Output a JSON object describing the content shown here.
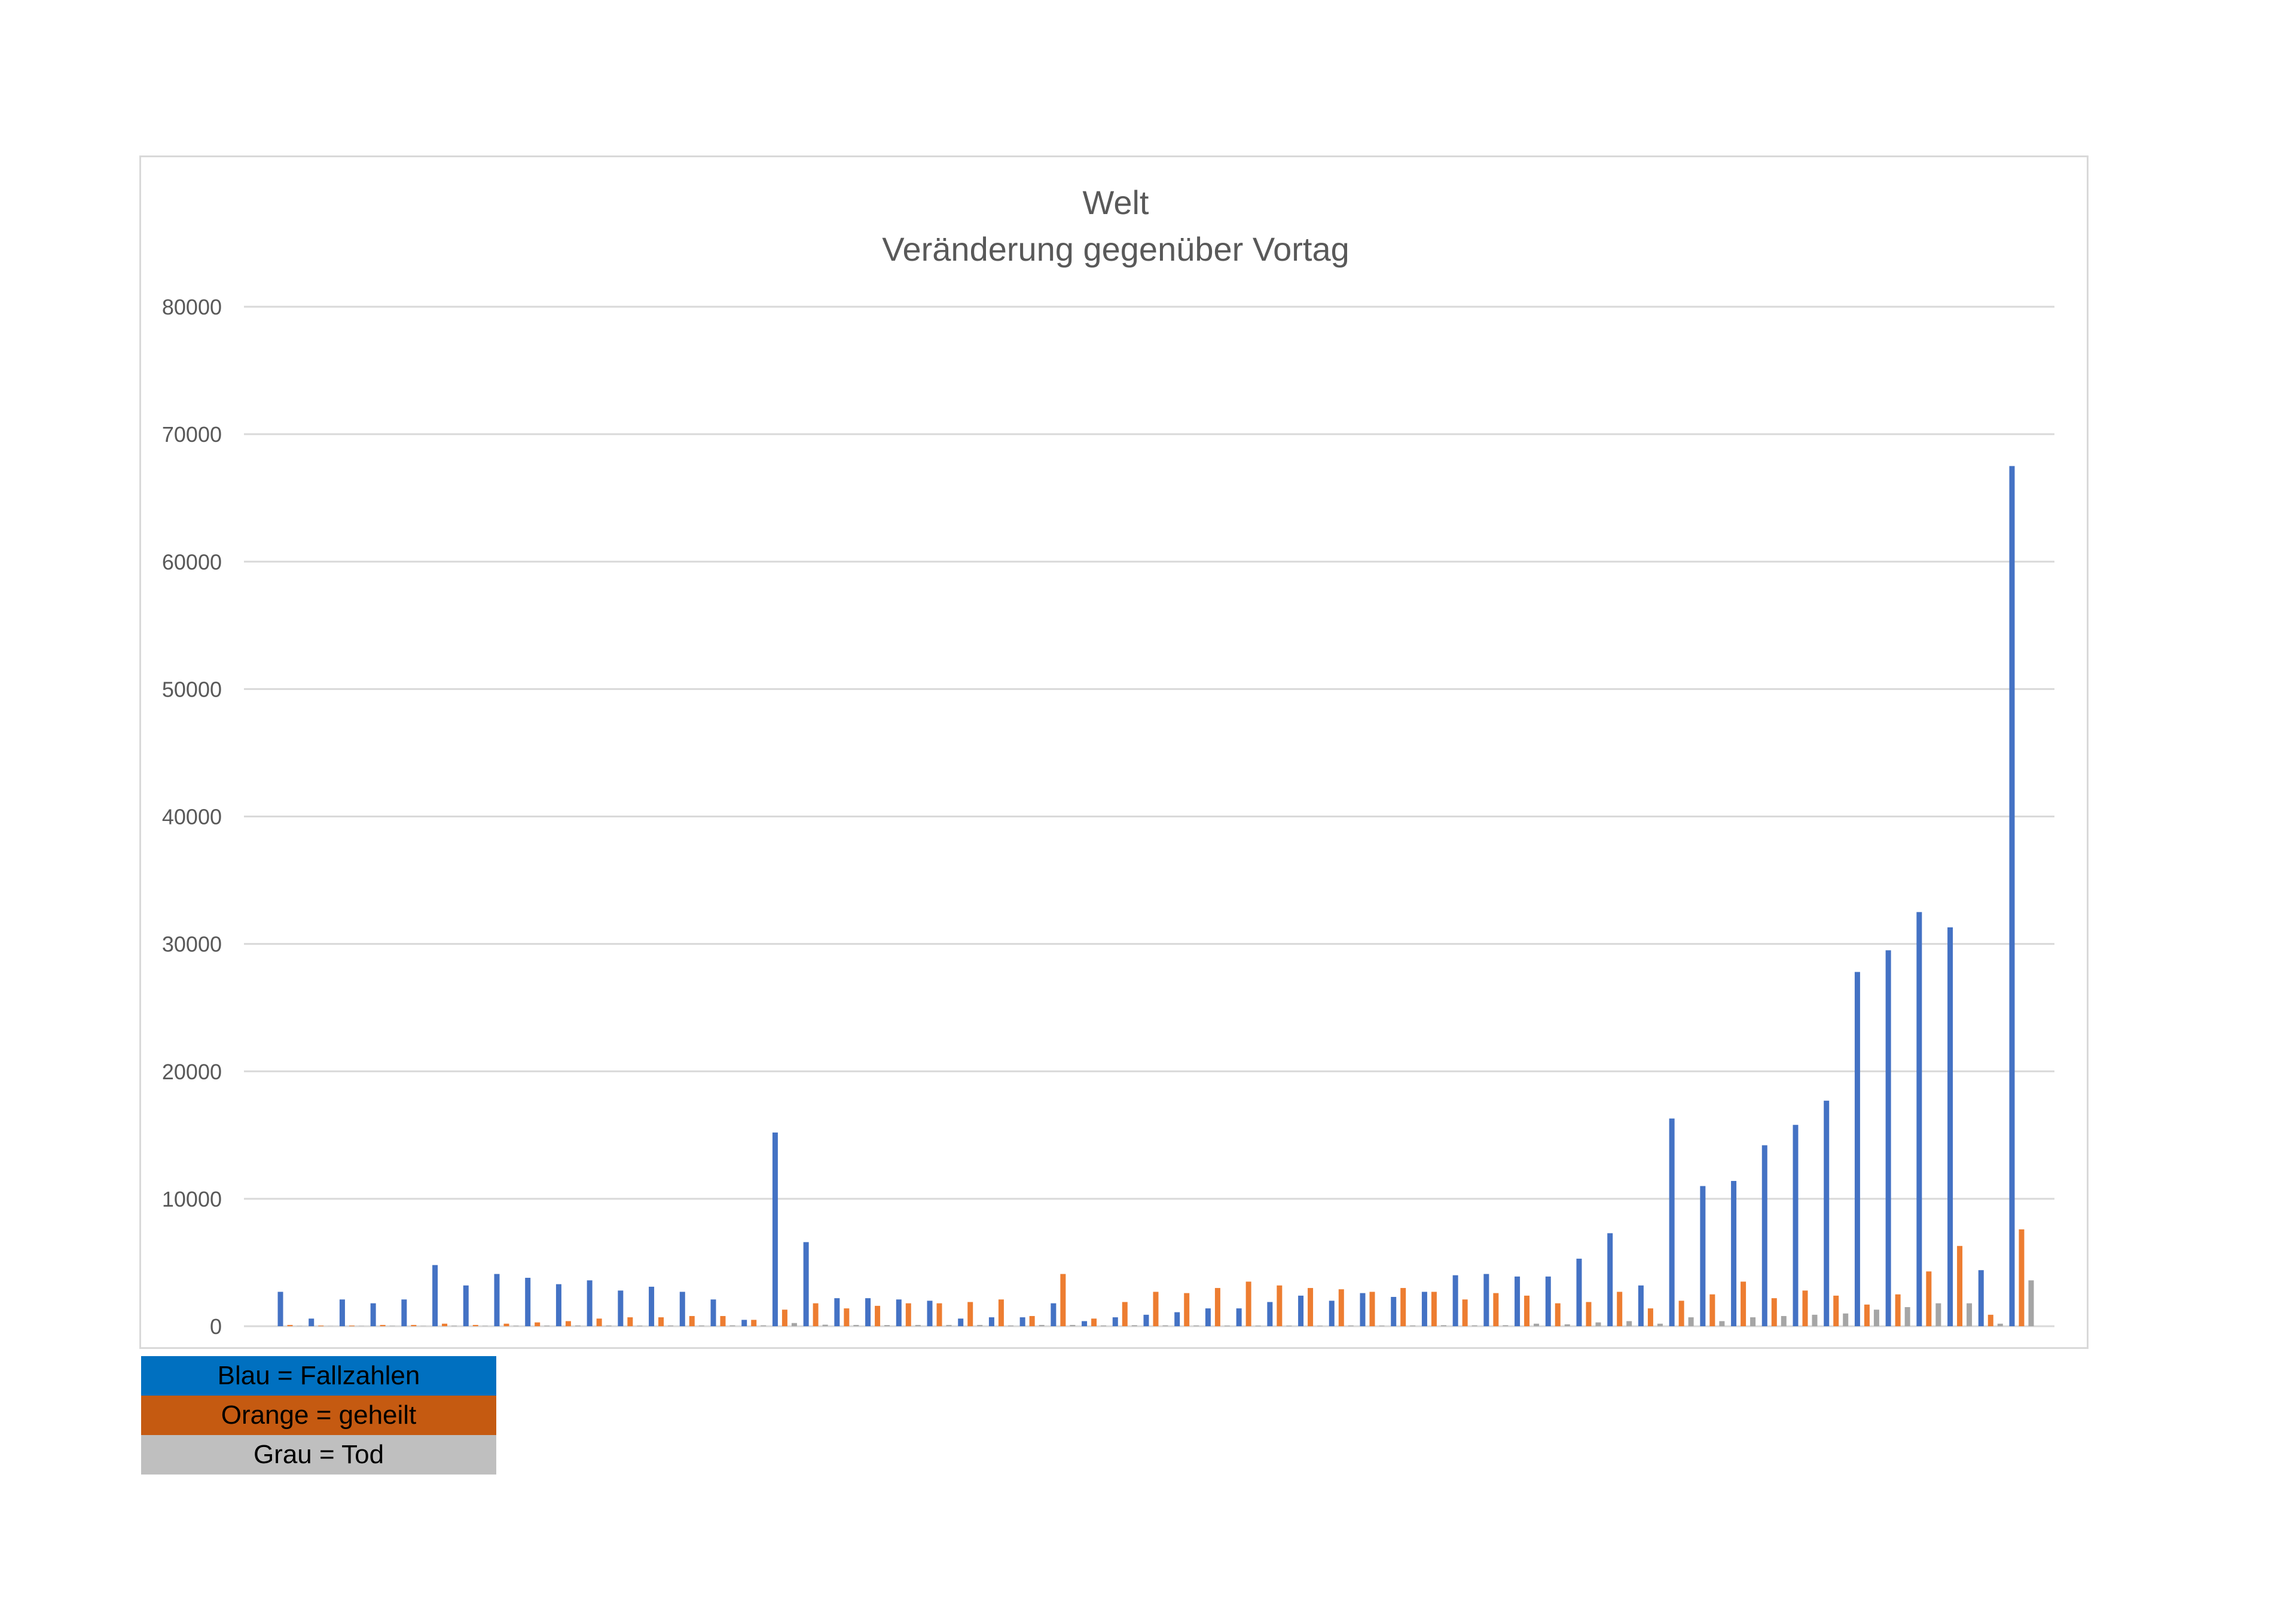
{
  "chart_data": {
    "type": "bar",
    "title": "Welt",
    "subtitle": "Veränderung gegenüber Vortag",
    "xlabel": "",
    "ylabel": "",
    "ylim": [
      0,
      80000
    ],
    "yticks": [
      "0",
      "10000",
      "20000",
      "30000",
      "40000",
      "50000",
      "60000",
      "70000",
      "80000"
    ],
    "grid": true,
    "colors": [
      "#4472c4",
      "#ed7d31",
      "#a5a5a5"
    ],
    "series": [
      {
        "values": [
          2700,
          600,
          2100,
          1800,
          2100,
          4800,
          3200,
          4100,
          3800,
          3300,
          3600,
          2800,
          3100,
          2700,
          2100,
          500,
          15200,
          6600,
          2200,
          2200,
          2100,
          2000,
          600,
          700,
          700,
          1800,
          400,
          700,
          900,
          1100,
          1400,
          1400,
          1900,
          2400,
          2000,
          2600,
          2300,
          2700,
          4000,
          4100,
          3900,
          3900,
          5300,
          7300,
          3200,
          16300,
          11000,
          11400,
          14200,
          15800,
          17700,
          27800,
          29500,
          32500,
          31300,
          4400,
          67500
        ]
      },
      {
        "values": [
          100,
          50,
          50,
          100,
          100,
          200,
          100,
          200,
          300,
          400,
          600,
          700,
          700,
          800,
          800,
          500,
          1300,
          1800,
          1400,
          1600,
          1800,
          1800,
          1900,
          2100,
          800,
          4100,
          600,
          1900,
          2700,
          2600,
          3000,
          3500,
          3200,
          3000,
          2900,
          2700,
          3000,
          2700,
          2100,
          2600,
          2400,
          1800,
          1900,
          2700,
          1400,
          2000,
          2500,
          3500,
          2200,
          2800,
          2400,
          1700,
          2500,
          4300,
          6300,
          900,
          7600
        ]
      },
      {
        "values": [
          20,
          10,
          20,
          30,
          20,
          40,
          30,
          40,
          50,
          60,
          60,
          50,
          60,
          60,
          70,
          70,
          250,
          120,
          100,
          90,
          100,
          100,
          100,
          60,
          100,
          100,
          60,
          80,
          70,
          60,
          50,
          50,
          50,
          40,
          60,
          50,
          60,
          80,
          70,
          80,
          200,
          150,
          300,
          400,
          200,
          700,
          400,
          700,
          800,
          900,
          1000,
          1300,
          1500,
          1800,
          1800,
          200,
          3600
        ]
      }
    ]
  },
  "legend": {
    "blau": "Blau = Fallzahlen",
    "orange": "Orange = geheilt",
    "grau": "Grau = Tod",
    "blau_bg": "#0070c0",
    "orange_bg": "#c55a11",
    "grau_bg": "#bfbfbf"
  }
}
